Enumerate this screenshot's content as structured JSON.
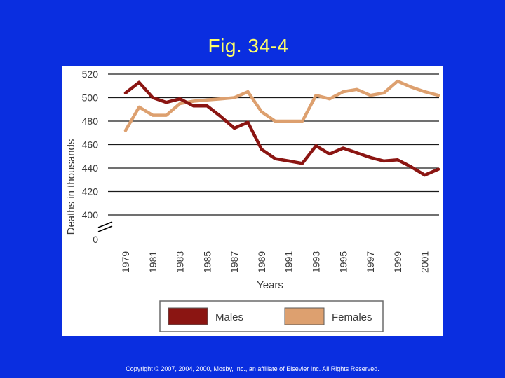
{
  "slide": {
    "title": "Fig. 34-4",
    "copyright": "Copyright © 2007, 2004, 2000, Mosby, Inc., an affiliate of Elsevier Inc. All Rights Reserved."
  },
  "colors": {
    "background": "#0a2ee0",
    "title": "#ffff66",
    "males": "#8b1512",
    "females": "#dda06f"
  },
  "chart_data": {
    "type": "line",
    "title": "",
    "xlabel": "Years",
    "ylabel": "Deaths in thousands",
    "ylim": [
      400,
      520
    ],
    "axis_break": true,
    "yticks": [
      520,
      500,
      480,
      460,
      440,
      420,
      400
    ],
    "ytick_zero_label": "0",
    "x": [
      1979,
      1980,
      1981,
      1982,
      1983,
      1984,
      1985,
      1986,
      1987,
      1988,
      1989,
      1990,
      1991,
      1992,
      1993,
      1994,
      1995,
      1996,
      1997,
      1998,
      1999,
      2000,
      2001,
      2002
    ],
    "xtick_labels": [
      "1979",
      "1981",
      "1983",
      "1985",
      "1987",
      "1989",
      "1991",
      "1993",
      "1995",
      "1997",
      "1999",
      "2001"
    ],
    "grid": "horizontal",
    "legend_position": "bottom",
    "series": [
      {
        "name": "Males",
        "color": "#8b1512",
        "values": [
          504,
          513,
          500,
          496,
          499,
          493,
          493,
          484,
          474,
          479,
          456,
          448,
          446,
          444,
          459,
          452,
          457,
          453,
          449,
          446,
          447,
          441,
          434,
          439
        ]
      },
      {
        "name": "Females",
        "color": "#dda06f",
        "values": [
          472,
          492,
          485,
          485,
          495,
          497,
          498,
          499,
          500,
          505,
          488,
          480,
          480,
          480,
          502,
          499,
          505,
          507,
          502,
          504,
          514,
          509,
          505,
          502
        ]
      }
    ]
  }
}
